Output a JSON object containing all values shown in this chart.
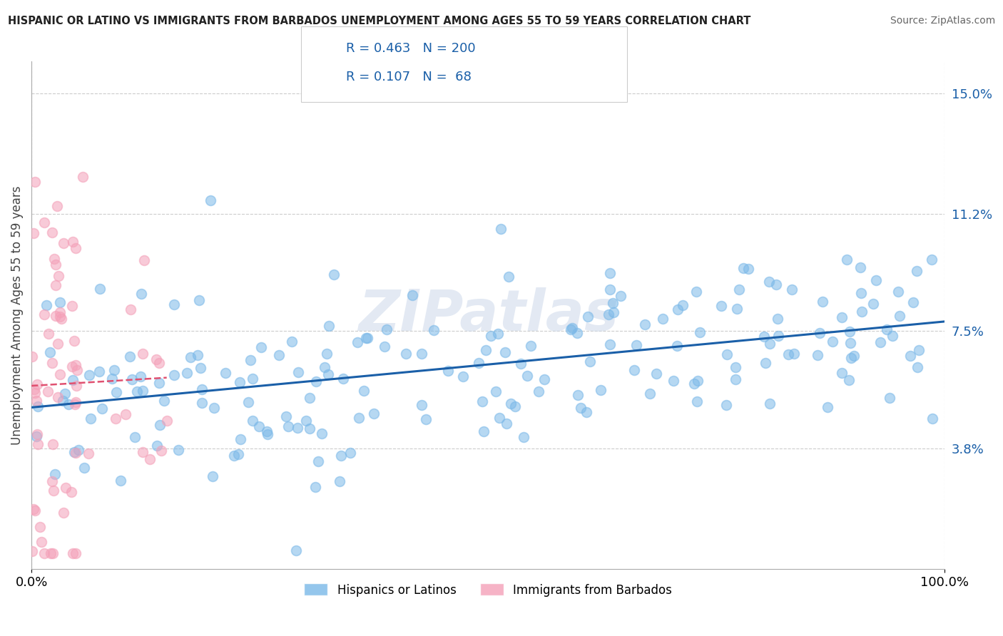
{
  "title": "HISPANIC OR LATINO VS IMMIGRANTS FROM BARBADOS UNEMPLOYMENT AMONG AGES 55 TO 59 YEARS CORRELATION CHART",
  "source": "Source: ZipAtlas.com",
  "ylabel": "Unemployment Among Ages 55 to 59 years",
  "xlim": [
    0,
    100
  ],
  "ylim": [
    0,
    16
  ],
  "yticks_right": [
    3.8,
    7.5,
    11.2,
    15.0
  ],
  "xticklabels": [
    "0.0%",
    "100.0%"
  ],
  "blue_label": "Hispanics or Latinos",
  "pink_label": "Immigrants from Barbados",
  "R_blue": "0.463",
  "N_blue": "200",
  "R_pink": "0.107",
  "N_pink": "68",
  "blue_color": "#7ab8e8",
  "pink_color": "#f4a0b8",
  "trend_blue_color": "#1a5fa8",
  "trend_pink_color": "#e05070",
  "trend_pink_style": "dashed",
  "watermark": "ZIPatlas",
  "bg_color": "#ffffff",
  "dot_size": 100,
  "dot_alpha": 0.55,
  "dot_linewidth": 1.2
}
